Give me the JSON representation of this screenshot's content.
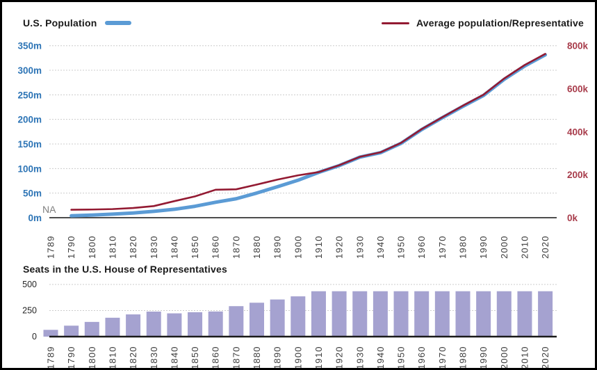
{
  "page": {
    "background": "#ffffff",
    "border_color": "#000000"
  },
  "colors": {
    "population_line": "#5B9BD5",
    "avg_line": "#931A32",
    "left_axis_labels": "#2E75B6",
    "right_axis_labels": "#A83C4B",
    "bar_fill": "#A5A2D0",
    "gridline": "#CCCCCC",
    "x_labels": "#3B3B3B",
    "bottom_y_labels": "#262626",
    "top_axis_line": "#4D4D4D",
    "bottom_axis_line": "#1A1A1A"
  },
  "chart_data": [
    {
      "type": "line",
      "title": "",
      "x": [
        1789,
        1790,
        1800,
        1810,
        1820,
        1830,
        1840,
        1850,
        1860,
        1870,
        1880,
        1890,
        1900,
        1910,
        1920,
        1930,
        1940,
        1950,
        1960,
        1970,
        1980,
        1990,
        2000,
        2010,
        2020
      ],
      "series": [
        {
          "name": "U.S. Population",
          "axis": "left",
          "unit": "millions",
          "values": [
            null,
            3.9,
            5.3,
            7.2,
            9.6,
            12.9,
            17.1,
            23.2,
            31.4,
            38.6,
            50.2,
            63.0,
            76.2,
            92.2,
            106.0,
            123.2,
            132.2,
            151.3,
            179.3,
            203.3,
            226.5,
            248.7,
            281.4,
            308.7,
            331.4
          ]
        },
        {
          "name": "Average population/Representative",
          "axis": "right",
          "unit": "thousands",
          "values": [
            null,
            37,
            38,
            40,
            45,
            54,
            77,
            99,
            130,
            132,
            154,
            177,
            197,
            212,
            244,
            283,
            304,
            348,
            412,
            467,
            521,
            572,
            647,
            710,
            762
          ]
        }
      ],
      "left_axis": {
        "tick_labels": [
          "0m",
          "50m",
          "100m",
          "150m",
          "200m",
          "250m",
          "300m",
          "350m"
        ],
        "tick_values": [
          0,
          50,
          100,
          150,
          200,
          250,
          300,
          350
        ],
        "min": 0,
        "max": 350
      },
      "right_axis": {
        "tick_labels": [
          "0k",
          "200k",
          "400k",
          "600k",
          "800k"
        ],
        "tick_values": [
          0,
          200,
          400,
          600,
          800
        ],
        "min": 0,
        "max": 800
      },
      "annotations": [
        {
          "text": "NA",
          "x": 1789
        }
      ],
      "grid": "horizontal-dashed",
      "legend_position": "top"
    },
    {
      "type": "bar",
      "title": "Seats in the U.S. House of Representatives",
      "categories": [
        1789,
        1790,
        1800,
        1810,
        1820,
        1830,
        1840,
        1850,
        1860,
        1870,
        1880,
        1890,
        1900,
        1910,
        1920,
        1930,
        1940,
        1950,
        1960,
        1970,
        1980,
        1990,
        2000,
        2010,
        2020
      ],
      "values": [
        65,
        105,
        141,
        181,
        213,
        240,
        223,
        234,
        241,
        292,
        325,
        356,
        386,
        435,
        435,
        435,
        435,
        435,
        435,
        435,
        435,
        435,
        435,
        435,
        435
      ],
      "ylabel": "",
      "xlabel": "",
      "yticks": [
        0,
        250,
        500
      ],
      "ylim": [
        0,
        500
      ],
      "grid": "horizontal-dashed"
    }
  ]
}
